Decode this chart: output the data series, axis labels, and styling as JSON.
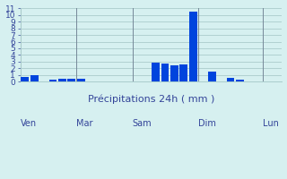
{
  "xlabel": "Précipitations 24h ( mm )",
  "background_color": "#d6f0f0",
  "bar_color": "#0044dd",
  "grid_color": "#aacccc",
  "grid_minor_color": "#c8e0e0",
  "ylim": [
    0,
    11
  ],
  "yticks": [
    0,
    1,
    2,
    3,
    4,
    5,
    6,
    7,
    8,
    9,
    10,
    11
  ],
  "bar_values": [
    0.7,
    1.0,
    0.0,
    0.35,
    0.5,
    0.5,
    0.4,
    0.0,
    0.0,
    0.0,
    0.0,
    0.0,
    0.0,
    0.0,
    2.8,
    2.75,
    2.5,
    2.6,
    10.5,
    0.0,
    1.5,
    0.0,
    0.65,
    0.3,
    0.0,
    0.0,
    0.0,
    0.0
  ],
  "day_labels": [
    "Ven",
    "Mar",
    "Sam",
    "Dim",
    "Lun"
  ],
  "day_positions": [
    0,
    6,
    12,
    19,
    26
  ],
  "xlabel_fontsize": 8,
  "tick_fontsize": 6.5,
  "day_label_fontsize": 7
}
